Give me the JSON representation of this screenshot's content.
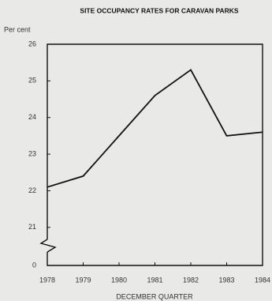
{
  "chart_data": {
    "type": "line",
    "title": "SITE OCCUPANCY RATES FOR CARAVAN PARKS",
    "y_label": "Per cent",
    "x_label": "DECEMBER QUARTER",
    "x": [
      1978,
      1979,
      1980,
      1981,
      1982,
      1983,
      1984
    ],
    "values": [
      22.1,
      22.4,
      23.5,
      24.6,
      25.3,
      23.5,
      23.6
    ],
    "color": "#111111",
    "xlim": [
      1978,
      1984
    ],
    "xticks": [
      1978,
      1979,
      1980,
      1981,
      1982,
      1983,
      1984
    ],
    "ylim": [
      20.5,
      26
    ],
    "yticks": [
      0,
      21,
      22,
      23,
      24,
      25,
      26
    ],
    "axis_break": true,
    "grid": false
  }
}
